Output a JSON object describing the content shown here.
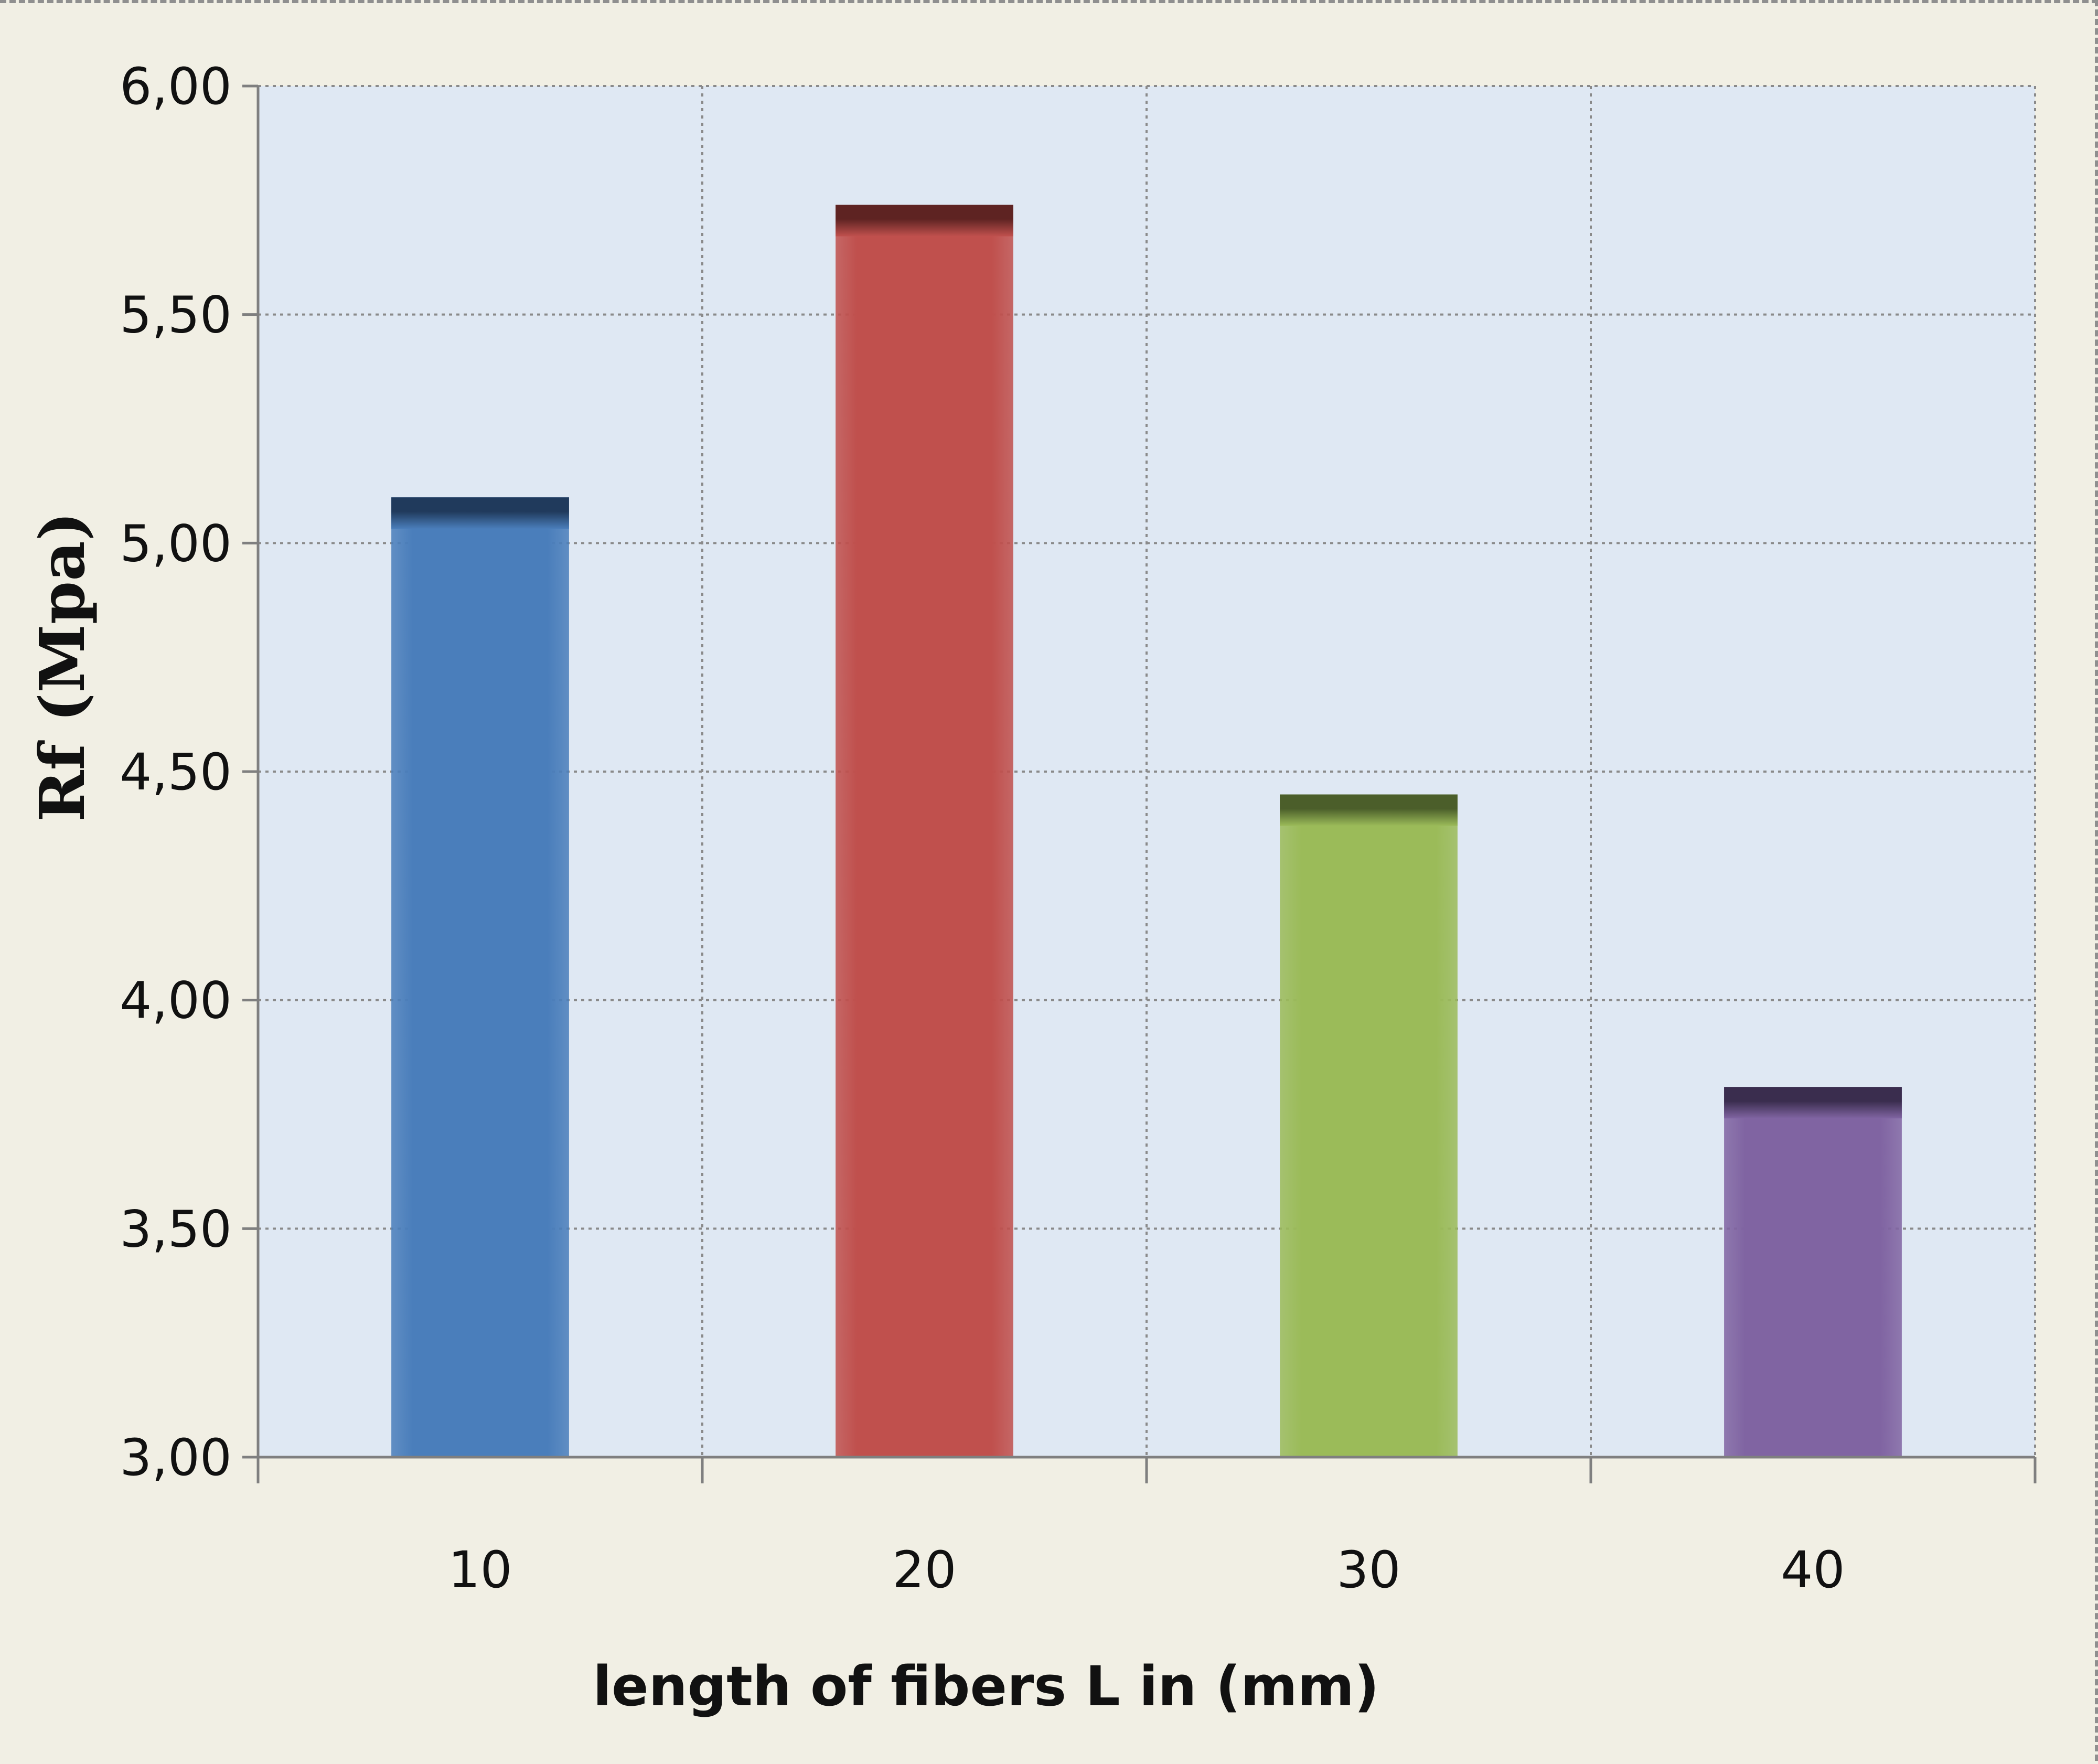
{
  "chart_data": {
    "type": "bar",
    "categories": [
      "10",
      "20",
      "30",
      "40"
    ],
    "values": [
      5.1,
      5.74,
      4.45,
      3.81
    ],
    "colors": [
      "#4a7ebb",
      "#c0504d",
      "#9bbb59",
      "#8064a2"
    ],
    "cap_colors": [
      "#203a5c",
      "#5e2322",
      "#4b5e2a",
      "#3a2d4e"
    ],
    "xlabel": "length of fibers L in (mm)",
    "ylabel": "Rf (Mpa)",
    "ylim": [
      3.0,
      6.0
    ],
    "yticks": [
      3.0,
      3.5,
      4.0,
      4.5,
      5.0,
      5.5,
      6.0
    ],
    "ytick_labels": [
      "3,00",
      "3,50",
      "4,00",
      "4,50",
      "5,00",
      "5,50",
      "6,00"
    ],
    "plot_background": "#dfe8f3",
    "grid": true,
    "legend": "none"
  }
}
